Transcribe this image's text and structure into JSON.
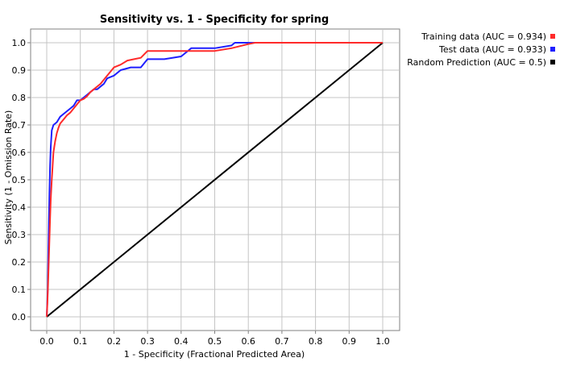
{
  "chart_data": {
    "type": "line",
    "title": "Sensitivity vs. 1 - Specificity for spring",
    "xlabel": "1 - Specificity  (Fractional Predicted Area)",
    "ylabel": "Sensitivity  (1 - Omission Rate)",
    "xlim": [
      0,
      1
    ],
    "ylim": [
      0,
      1
    ],
    "xticks": [
      "0.0",
      "0.1",
      "0.2",
      "0.3",
      "0.4",
      "0.5",
      "0.6",
      "0.7",
      "0.8",
      "0.9",
      "1.0"
    ],
    "yticks": [
      "0.0",
      "0.1",
      "0.2",
      "0.3",
      "0.4",
      "0.5",
      "0.6",
      "0.7",
      "0.8",
      "0.9",
      "1.0"
    ],
    "grid": true,
    "legend_position": "top-right-outside",
    "series": [
      {
        "name": "Training data (AUC = 0.934)",
        "color": "#ff2a2a",
        "x": [
          0,
          0.002,
          0.004,
          0.006,
          0.008,
          0.01,
          0.012,
          0.015,
          0.018,
          0.02,
          0.025,
          0.03,
          0.035,
          0.04,
          0.05,
          0.06,
          0.07,
          0.08,
          0.09,
          0.1,
          0.11,
          0.12,
          0.13,
          0.14,
          0.15,
          0.16,
          0.17,
          0.18,
          0.19,
          0.2,
          0.22,
          0.24,
          0.26,
          0.28,
          0.3,
          0.33,
          0.36,
          0.4,
          0.45,
          0.5,
          0.55,
          0.6,
          0.62,
          0.7,
          0.8,
          0.9,
          1.0
        ],
        "y": [
          0,
          0.05,
          0.12,
          0.2,
          0.28,
          0.36,
          0.43,
          0.5,
          0.56,
          0.6,
          0.64,
          0.67,
          0.69,
          0.705,
          0.72,
          0.735,
          0.745,
          0.76,
          0.775,
          0.79,
          0.795,
          0.805,
          0.82,
          0.83,
          0.84,
          0.85,
          0.865,
          0.88,
          0.895,
          0.91,
          0.92,
          0.935,
          0.94,
          0.945,
          0.97,
          0.97,
          0.97,
          0.97,
          0.97,
          0.97,
          0.98,
          0.995,
          1.0,
          1.0,
          1.0,
          1.0,
          1.0
        ]
      },
      {
        "name": "Test data (AUC = 0.933)",
        "color": "#1f1fff",
        "x": [
          0,
          0.003,
          0.005,
          0.008,
          0.01,
          0.012,
          0.015,
          0.02,
          0.03,
          0.04,
          0.05,
          0.06,
          0.07,
          0.08,
          0.09,
          0.1,
          0.11,
          0.12,
          0.13,
          0.14,
          0.15,
          0.17,
          0.18,
          0.2,
          0.22,
          0.25,
          0.28,
          0.3,
          0.35,
          0.4,
          0.41,
          0.43,
          0.5,
          0.55,
          0.56,
          0.6,
          0.7,
          0.8,
          0.9,
          1.0
        ],
        "y": [
          0,
          0.1,
          0.25,
          0.45,
          0.55,
          0.62,
          0.68,
          0.7,
          0.71,
          0.73,
          0.74,
          0.75,
          0.76,
          0.77,
          0.79,
          0.79,
          0.8,
          0.81,
          0.82,
          0.83,
          0.83,
          0.85,
          0.87,
          0.88,
          0.9,
          0.91,
          0.91,
          0.94,
          0.94,
          0.95,
          0.96,
          0.98,
          0.98,
          0.99,
          1.0,
          1.0,
          1.0,
          1.0,
          1.0,
          1.0
        ]
      },
      {
        "name": "Random Prediction (AUC = 0.5)",
        "color": "#000000",
        "x": [
          0,
          1
        ],
        "y": [
          0,
          1
        ]
      }
    ]
  }
}
